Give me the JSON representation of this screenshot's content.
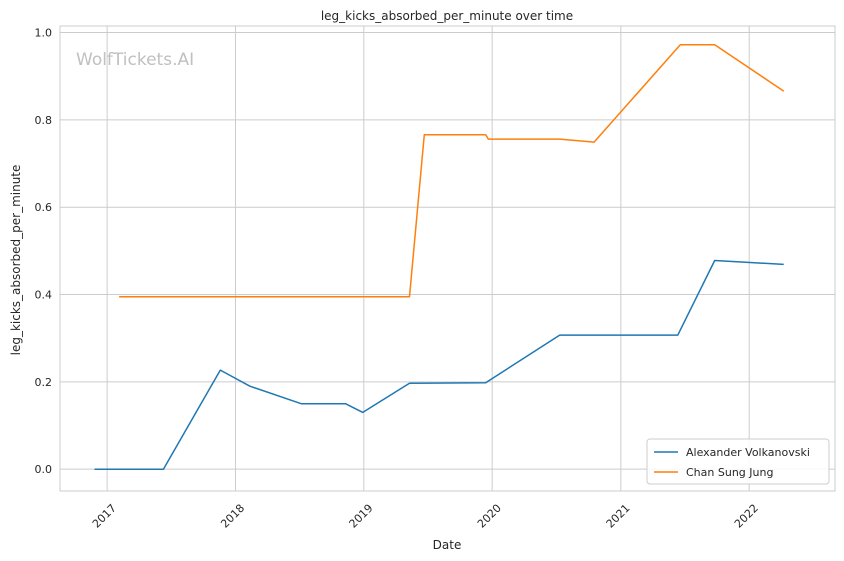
{
  "watermark": "WolfTickets.AI",
  "chart_data": {
    "type": "line",
    "title": "leg_kicks_absorbed_per_minute over time",
    "xlabel": "Date",
    "ylabel": "leg_kicks_absorbed_per_minute",
    "x_ticks": [
      "2017",
      "2018",
      "2019",
      "2020",
      "2021",
      "2022"
    ],
    "y_ticks": [
      "0.0",
      "0.2",
      "0.4",
      "0.6",
      "0.8",
      "1.0"
    ],
    "xlim": [
      "2016-08-20",
      "2022-09-02"
    ],
    "ylim": [
      -0.05,
      1.015
    ],
    "grid": true,
    "legend_position": "lower-right",
    "series": [
      {
        "name": "Alexander Volkanovski",
        "color": "#1f77b4",
        "points": [
          {
            "x": "2016-11-26",
            "y": 0.0
          },
          {
            "x": "2017-06-10",
            "y": 0.0
          },
          {
            "x": "2017-11-19",
            "y": 0.227
          },
          {
            "x": "2018-02-11",
            "y": 0.19
          },
          {
            "x": "2018-07-07",
            "y": 0.15
          },
          {
            "x": "2018-11-10",
            "y": 0.15
          },
          {
            "x": "2018-12-29",
            "y": 0.13
          },
          {
            "x": "2019-05-11",
            "y": 0.197
          },
          {
            "x": "2019-12-14",
            "y": 0.198
          },
          {
            "x": "2020-07-11",
            "y": 0.307
          },
          {
            "x": "2021-06-12",
            "y": 0.307
          },
          {
            "x": "2021-09-25",
            "y": 0.478
          },
          {
            "x": "2022-04-09",
            "y": 0.469
          }
        ]
      },
      {
        "name": "Chan Sung Jung",
        "color": "#ff7f0e",
        "points": [
          {
            "x": "2017-02-04",
            "y": 0.395
          },
          {
            "x": "2019-05-11",
            "y": 0.395
          },
          {
            "x": "2019-06-22",
            "y": 0.766
          },
          {
            "x": "2019-12-14",
            "y": 0.766
          },
          {
            "x": "2019-12-21",
            "y": 0.756
          },
          {
            "x": "2020-07-11",
            "y": 0.756
          },
          {
            "x": "2020-10-17",
            "y": 0.749
          },
          {
            "x": "2021-06-19",
            "y": 0.972
          },
          {
            "x": "2021-09-25",
            "y": 0.972
          },
          {
            "x": "2022-04-09",
            "y": 0.866
          }
        ]
      }
    ]
  }
}
